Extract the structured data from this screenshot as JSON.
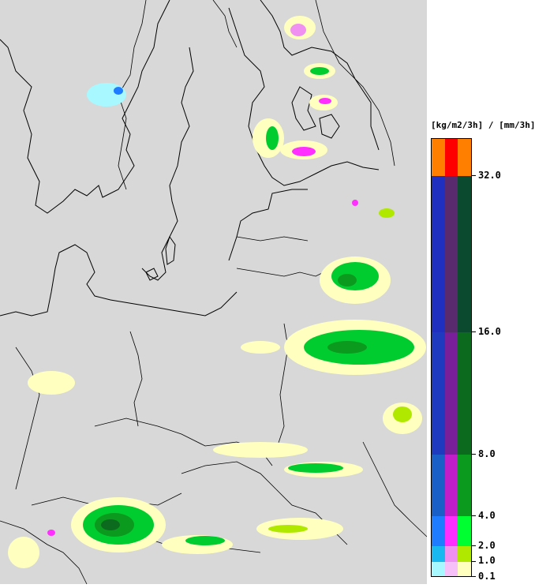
{
  "legend": {
    "title": "[kg/m2/3h] / [mm/3h]",
    "ticks": [
      "32.0",
      "16.0",
      "8.0",
      "4.0",
      "2.0",
      "1.0",
      "0.1"
    ],
    "bands": [
      {
        "colors": [
          "#ff8000",
          "#ff0000",
          "#ff8000"
        ]
      },
      {
        "colors": [
          "#1f2fbf",
          "#5a2a6e",
          "#0b4a2e"
        ]
      },
      {
        "colors": [
          "#1f3abf",
          "#7a1f9a",
          "#0b6a1e"
        ]
      },
      {
        "colors": [
          "#1a5fc8",
          "#c01ec8",
          "#0b9a1e"
        ]
      },
      {
        "colors": [
          "#1f7cff",
          "#ff30ff",
          "#00ff30"
        ]
      },
      {
        "colors": [
          "#1ab8f0",
          "#f090f0",
          "#b0e800"
        ]
      },
      {
        "colors": [
          "#a8f8ff",
          "#f8c0f8",
          "#ffffc0"
        ]
      }
    ]
  }
}
